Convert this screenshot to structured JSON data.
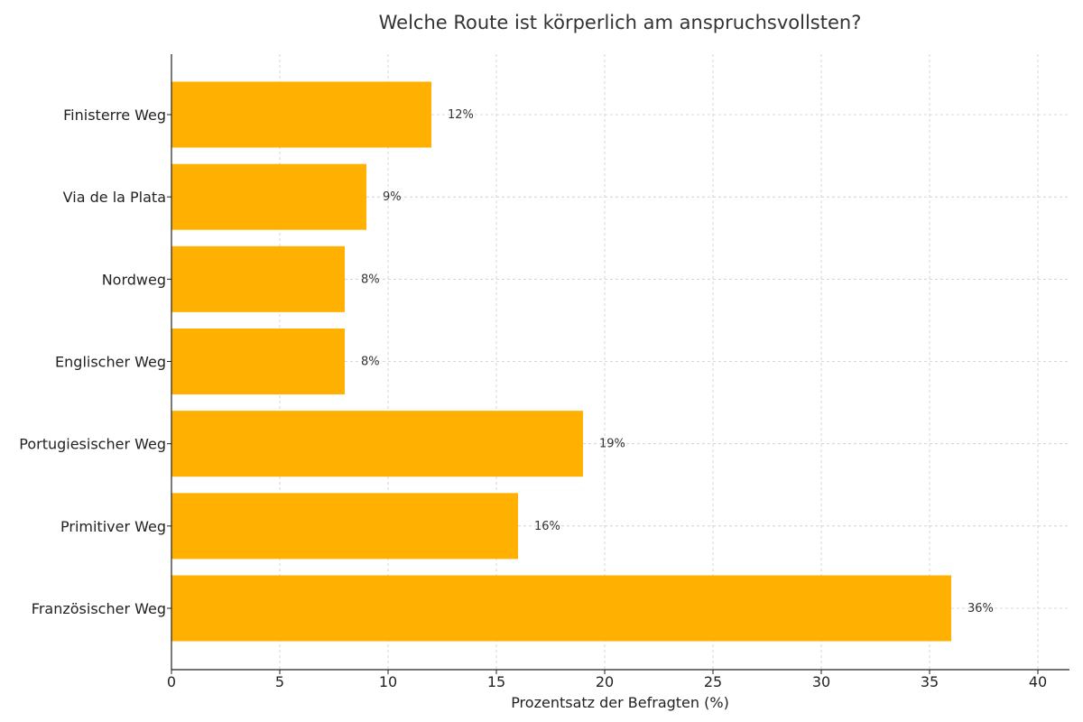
{
  "chart_data": {
    "type": "bar",
    "orientation": "horizontal",
    "title": "Welche Route ist körperlich am anspruchsvollsten?",
    "xlabel": "Prozentsatz der Befragten (%)",
    "ylabel": "",
    "categories": [
      "Finisterre Weg",
      "Via de la Plata",
      "Nordweg",
      "Englischer Weg",
      "Portugiesischer Weg",
      "Primitiver Weg",
      "Französischer Weg"
    ],
    "values": [
      12,
      9,
      8,
      8,
      19,
      16,
      36
    ],
    "value_labels": [
      "12%",
      "9%",
      "8%",
      "8%",
      "19%",
      "16%",
      "36%"
    ],
    "xlim": [
      0,
      40
    ],
    "x_ticks": [
      0,
      5,
      10,
      15,
      20,
      25,
      30,
      35,
      40
    ],
    "x_tick_labels": [
      "0",
      "5",
      "10",
      "15",
      "20",
      "25",
      "30",
      "35",
      "40"
    ],
    "grid": true,
    "bar_color": "#FFB000"
  }
}
